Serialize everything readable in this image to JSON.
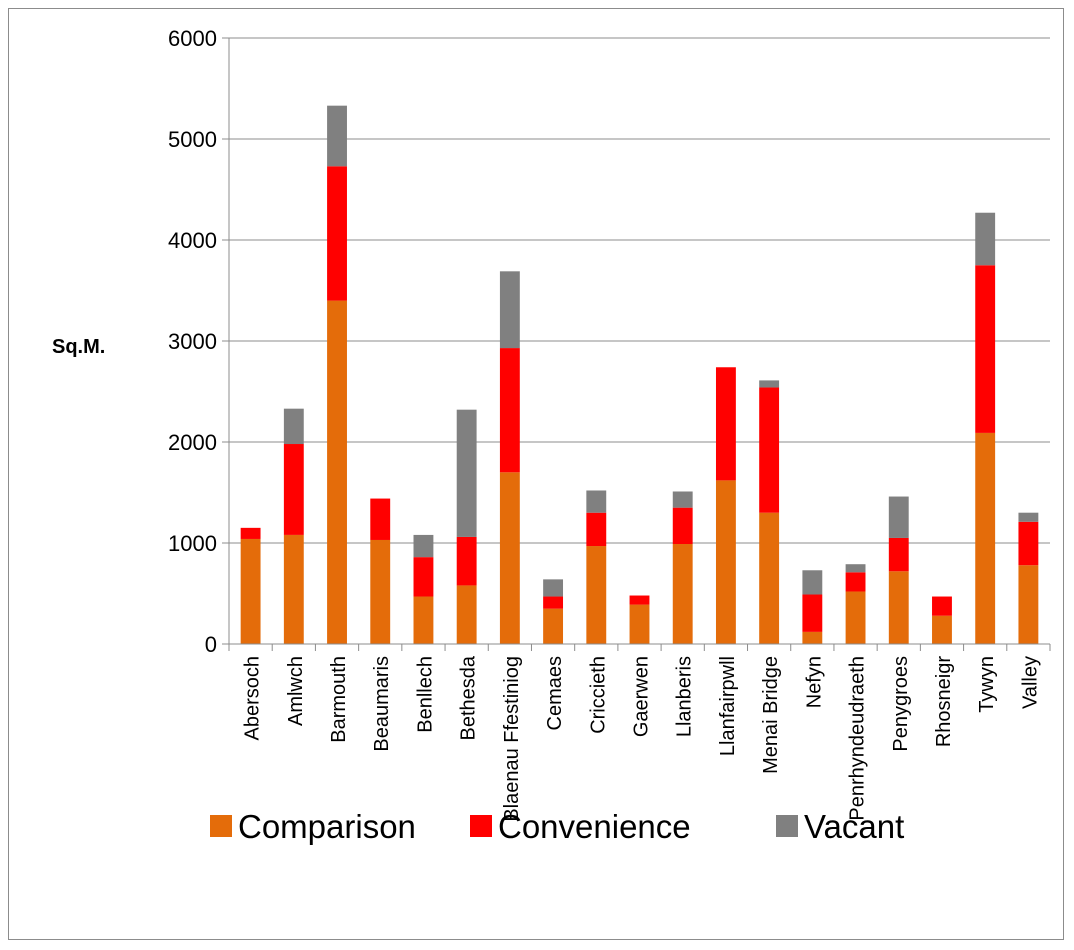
{
  "chart_data": {
    "type": "bar",
    "stacked": true,
    "title": "",
    "xlabel": "",
    "ylabel": "Sq.M.",
    "ylim": [
      0,
      6000
    ],
    "yticks": [
      0,
      1000,
      2000,
      3000,
      4000,
      5000,
      6000
    ],
    "grid": true,
    "legend_position": "bottom",
    "categories": [
      "Abersoch",
      "Amlwch",
      "Barmouth",
      "Beaumaris",
      "Benllech",
      "Bethesda",
      "Blaenau Ffestiniog",
      "Cemaes",
      "Criccieth",
      "Gaerwen",
      "Llanberis",
      "Llanfairpwll",
      "Menai Bridge",
      "Nefyn",
      "Penrhyndeudraeth",
      "Penygroes",
      "Rhosneigr",
      "Tywyn",
      "Valley"
    ],
    "series": [
      {
        "name": "Comparison",
        "color": "#e46c0a",
        "values": [
          1040,
          1080,
          3400,
          1030,
          470,
          580,
          1700,
          350,
          970,
          390,
          990,
          1620,
          1300,
          120,
          520,
          720,
          280,
          2090,
          780
        ]
      },
      {
        "name": "Convenience",
        "color": "#ff0000",
        "values": [
          110,
          900,
          1330,
          410,
          390,
          480,
          1230,
          120,
          330,
          90,
          360,
          1120,
          1240,
          370,
          190,
          330,
          190,
          1660,
          430
        ]
      },
      {
        "name": "Vacant",
        "color": "#808080",
        "values": [
          0,
          350,
          600,
          0,
          220,
          1260,
          760,
          170,
          220,
          0,
          160,
          0,
          70,
          240,
          80,
          410,
          0,
          520,
          90
        ]
      }
    ]
  }
}
